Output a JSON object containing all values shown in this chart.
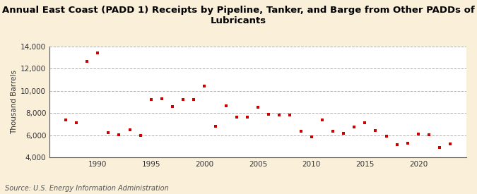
{
  "title": "Annual East Coast (PADD 1) Receipts by Pipeline, Tanker, and Barge from Other PADDs of\nLubricants",
  "ylabel": "Thousand Barrels",
  "source": "Source: U.S. Energy Information Administration",
  "background_color": "#faefd9",
  "plot_bg_color": "#ffffff",
  "marker_color": "#cc0000",
  "years": [
    1987,
    1988,
    1989,
    1990,
    1991,
    1992,
    1993,
    1994,
    1995,
    1996,
    1997,
    1998,
    1999,
    2000,
    2001,
    2002,
    2003,
    2004,
    2005,
    2006,
    2007,
    2008,
    2009,
    2010,
    2011,
    2012,
    2013,
    2014,
    2015,
    2016,
    2017,
    2018,
    2019,
    2020,
    2021,
    2022,
    2023
  ],
  "values": [
    7350,
    7150,
    12650,
    13400,
    6250,
    6050,
    6500,
    5950,
    9200,
    9300,
    8600,
    9250,
    9250,
    10450,
    6800,
    8650,
    7600,
    7600,
    8500,
    7900,
    7850,
    7800,
    6350,
    5850,
    7350,
    6350,
    6200,
    6750,
    7100,
    6400,
    5900,
    5150,
    5250,
    6100,
    6050,
    4900,
    5200
  ],
  "ylim": [
    4000,
    14000
  ],
  "yticks": [
    4000,
    6000,
    8000,
    10000,
    12000,
    14000
  ],
  "xlim": [
    1985.5,
    2024.5
  ],
  "xticks": [
    1990,
    1995,
    2000,
    2005,
    2010,
    2015,
    2020
  ],
  "title_fontsize": 9.5,
  "ylabel_fontsize": 7.5,
  "tick_fontsize": 7.5,
  "source_fontsize": 7.0
}
